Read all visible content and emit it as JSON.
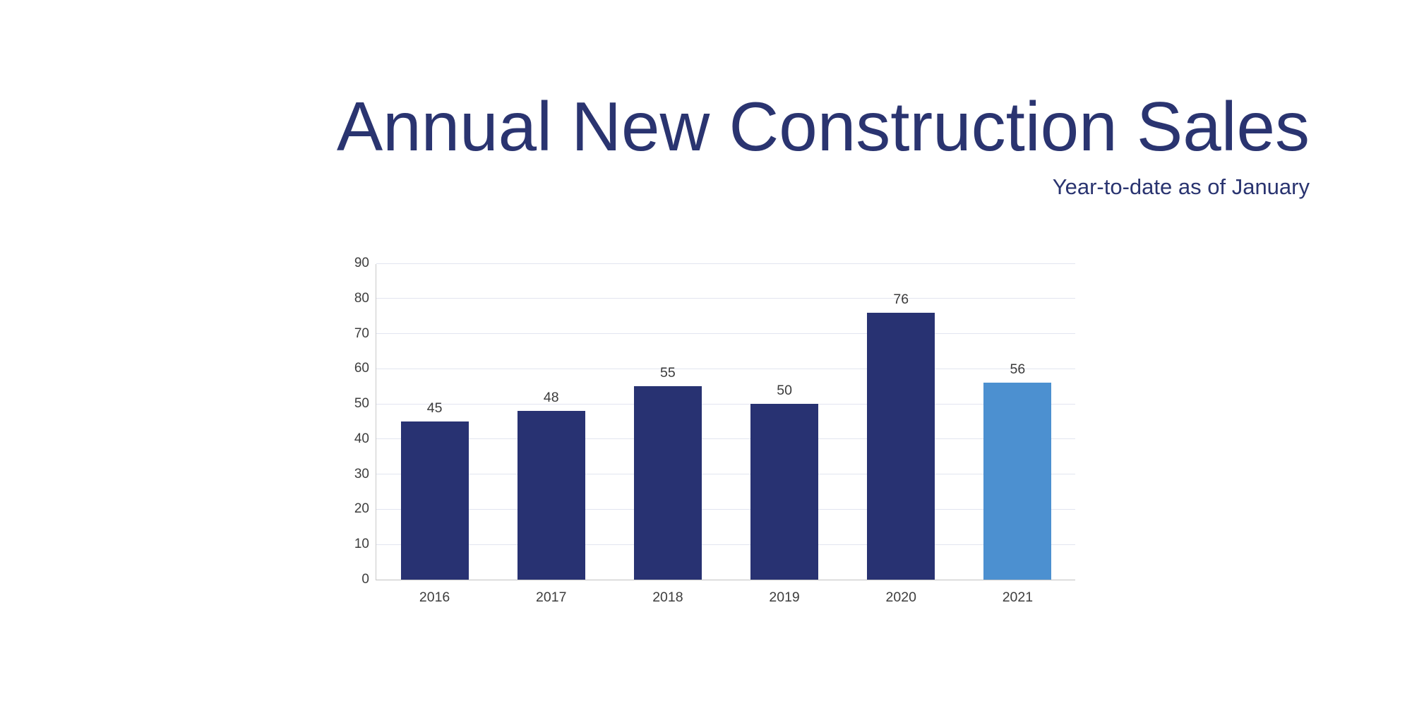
{
  "page": {
    "background": "#ffffff"
  },
  "header": {
    "title": "Annual New Construction Sales",
    "subtitle": "Year-to-date as of January",
    "title_color": "#2A3470"
  },
  "chart_data": {
    "type": "bar",
    "title": "Annual New Construction Sales",
    "subtitle": "Year-to-date as of January",
    "categories": [
      "2016",
      "2017",
      "2018",
      "2019",
      "2020",
      "2021"
    ],
    "values": [
      45,
      48,
      55,
      50,
      76,
      56
    ],
    "xlabel": "",
    "ylabel": "",
    "ylim": [
      0,
      90
    ],
    "yticks": [
      0,
      10,
      20,
      30,
      40,
      50,
      60,
      70,
      80,
      90
    ],
    "grid": true,
    "legend_position": "none",
    "data_labels_shown": true,
    "highlight_index": 5,
    "colors": {
      "bar_default": "#283272",
      "bar_highlight": "#4C90D0",
      "gridline": "#E2E5F0",
      "axis_line": "#C9C9C9",
      "tick_text": "#3D3D3D",
      "data_label_text": "#3B3B3B"
    }
  }
}
